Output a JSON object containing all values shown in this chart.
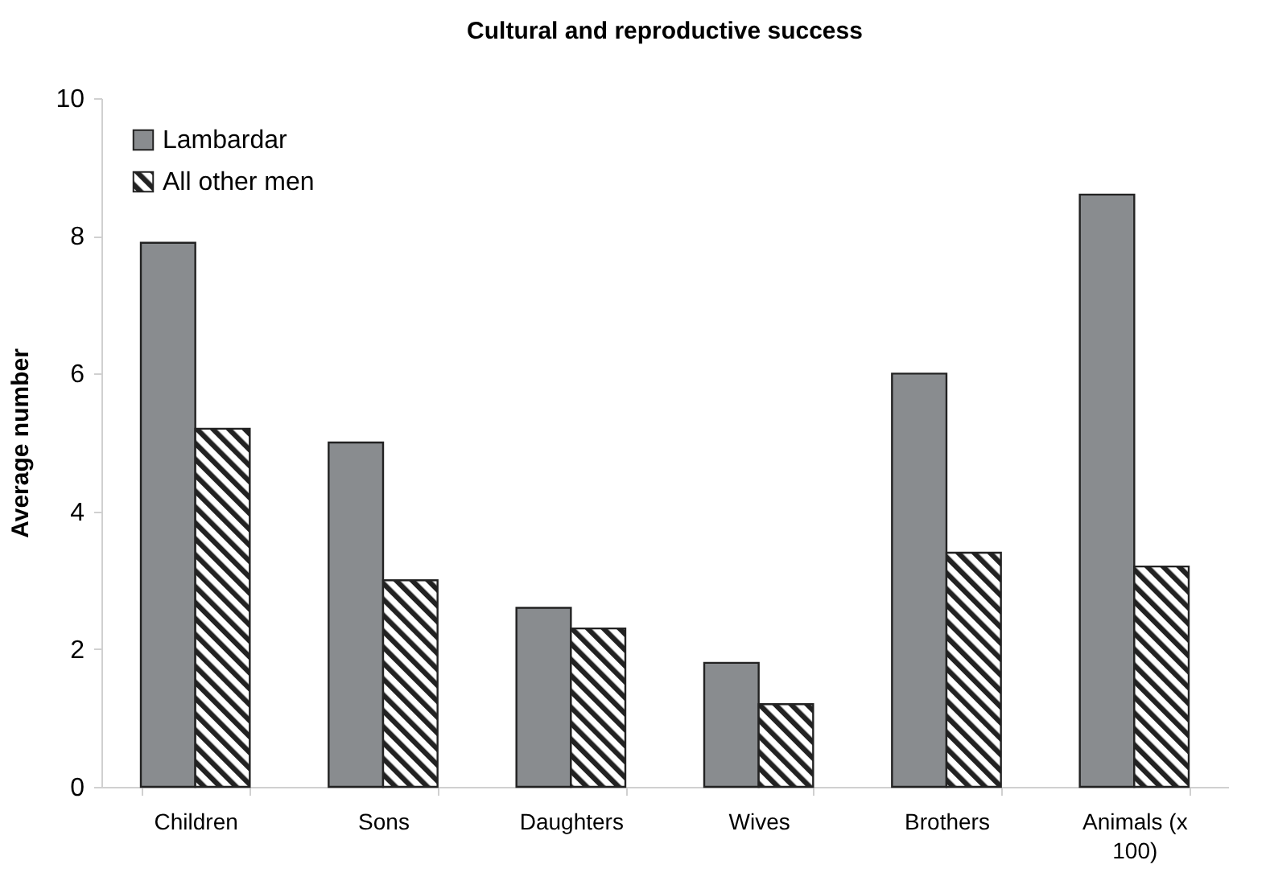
{
  "chart_data": {
    "type": "bar",
    "title": "Cultural and reproductive success",
    "ylabel": "Average number",
    "categories": [
      "Children",
      "Sons",
      "Daughters",
      "Wives",
      "Brothers",
      "Animals (x 100)"
    ],
    "series": [
      {
        "name": "Lambardar",
        "color": "#898c8f",
        "values": [
          7.9,
          5.0,
          2.6,
          1.8,
          6.0,
          8.6
        ]
      },
      {
        "name": "All other men",
        "color": "#222222",
        "values": [
          5.2,
          3.0,
          2.3,
          1.2,
          3.4,
          3.2
        ]
      }
    ],
    "ylim": [
      0,
      10
    ],
    "yticks": [
      0,
      2,
      4,
      6,
      8,
      10
    ],
    "grid": false,
    "legend": "top left"
  }
}
